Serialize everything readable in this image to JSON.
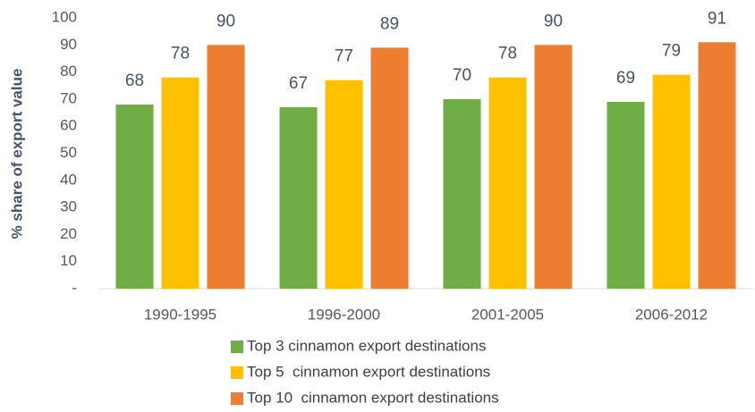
{
  "chart_data": {
    "type": "bar",
    "ylabel": "% share of export value",
    "categories": [
      "1990-1995",
      "1996-2000",
      "2001-2005",
      "2006-2012"
    ],
    "series": [
      {
        "name": "Top 3 cinnamon export destinations",
        "color": "#70ad47",
        "values": [
          68,
          67,
          70,
          69
        ]
      },
      {
        "name": "Top 5  cinnamon export destinations",
        "color": "#ffc000",
        "values": [
          78,
          77,
          78,
          79
        ]
      },
      {
        "name": "Top 10  cinnamon export destinations",
        "color": "#ed7d31",
        "values": [
          90,
          89,
          90,
          91
        ]
      }
    ],
    "ylim": [
      0,
      100
    ],
    "yticks": [
      {
        "value": 0,
        "label": "-"
      },
      10,
      20,
      30,
      40,
      50,
      60,
      70,
      80,
      90,
      100
    ],
    "grid": false,
    "legend": "bottom"
  }
}
